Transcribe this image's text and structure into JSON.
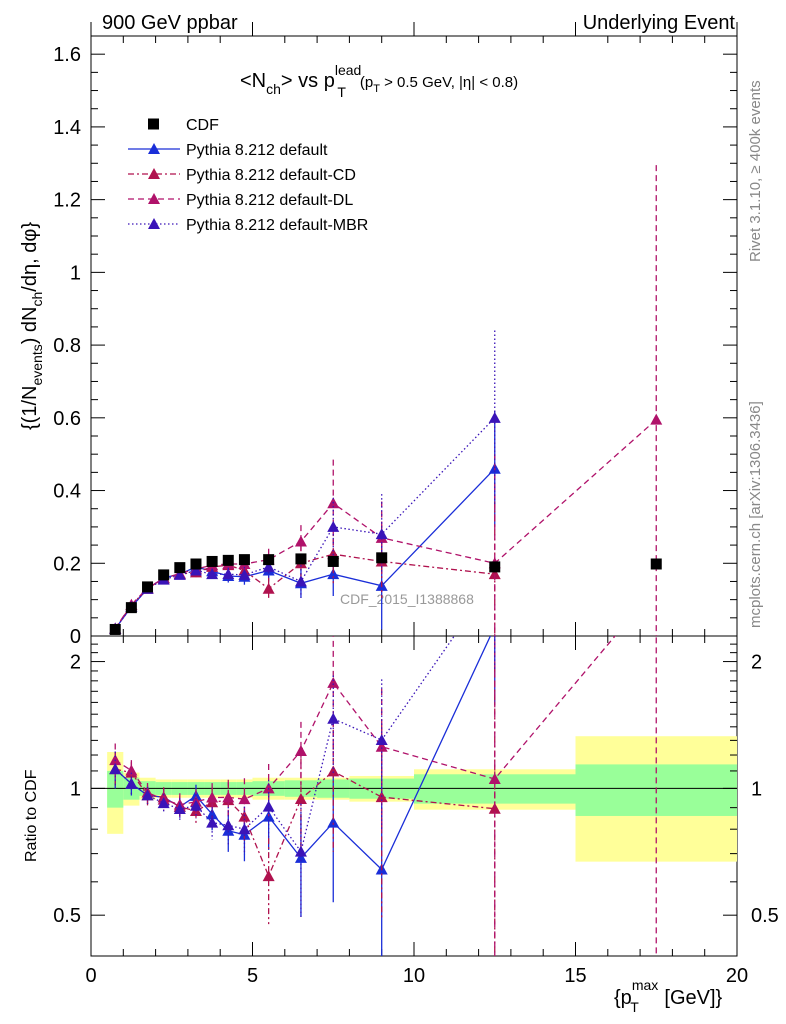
{
  "header": {
    "left": "900 GeV ppbar",
    "right": "Underlying Event"
  },
  "side_labels": {
    "rivet": "Rivet 3.1.10, ≥ 400k events",
    "mcplots": "mcplots.cern.ch [arXiv:1306.3436]"
  },
  "watermark": "CDF_2015_I1388868",
  "chart_data": {
    "type": "scatter",
    "title": "<N_ch> vs p_T^lead (p_T > 0.5 GeV, |η| < 0.8)",
    "title_parts": {
      "main": "<N",
      "sub": "ch",
      "vs": "> vs p",
      "sup": "lead",
      "sub2": "T",
      "cut": "(p",
      "cut_sub": "T",
      "cut_rest": " > 0.5 GeV, |η| < 0.8)"
    },
    "xlabel": "{p_T^max [GeV]}",
    "xlabel_parts": {
      "a": "{p",
      "sub": "T",
      "sup": "max",
      "b": " [GeV]}"
    },
    "ylabel": "{(1/N_events) dN_ch/dη, dφ}",
    "ylabel_parts": {
      "a": "{(1/N",
      "sub1": "events",
      "b": ") dN",
      "sub2": "ch",
      "c": "/dη, dφ}"
    },
    "ratio_ylabel": "Ratio to CDF",
    "xlim": [
      0,
      20
    ],
    "ylim": [
      0,
      1.65
    ],
    "ratio_ylim": [
      0.4,
      2.3
    ],
    "ratio_scale": "log",
    "x_ticks": [
      "0",
      "5",
      "10",
      "15",
      "20"
    ],
    "y_ticks": [
      "0",
      "0.2",
      "0.4",
      "0.6",
      "0.8",
      "1",
      "1.2",
      "1.4",
      "1.6"
    ],
    "ratio_ticks": [
      "0.5",
      "1",
      "2"
    ],
    "legend_position": "top-left",
    "series": [
      {
        "name": "CDF",
        "color": "#000000",
        "marker": "square",
        "line": "none",
        "x": [
          0.75,
          1.25,
          1.75,
          2.25,
          2.75,
          3.25,
          3.75,
          4.25,
          4.75,
          5.5,
          6.5,
          7.5,
          9.0,
          12.5,
          17.5
        ],
        "y": [
          0.018,
          0.078,
          0.135,
          0.168,
          0.188,
          0.198,
          0.205,
          0.208,
          0.21,
          0.21,
          0.212,
          0.205,
          0.215,
          0.19,
          0.198
        ]
      },
      {
        "name": "Pythia 8.212 default",
        "color": "#1a2ed8",
        "marker": "triangle",
        "line": "solid",
        "x": [
          0.75,
          1.25,
          1.75,
          2.25,
          2.75,
          3.25,
          3.75,
          4.25,
          4.75,
          5.5,
          6.5,
          7.5,
          9.0,
          12.5
        ],
        "y": [
          0.02,
          0.08,
          0.13,
          0.16,
          0.17,
          0.19,
          0.178,
          0.165,
          0.163,
          0.18,
          0.145,
          0.17,
          0.138,
          0.46
        ],
        "err": [
          0.002,
          0.005,
          0.006,
          0.008,
          0.01,
          0.012,
          0.015,
          0.018,
          0.022,
          0.03,
          0.04,
          0.06,
          0.12,
          0.16
        ]
      },
      {
        "name": "Pythia 8.212 default-CD",
        "color": "#b0124e",
        "marker": "triangle",
        "line": "dashdot",
        "x": [
          0.75,
          1.25,
          1.75,
          2.25,
          2.75,
          3.25,
          3.75,
          4.25,
          4.75,
          5.5,
          6.5,
          7.5,
          9.0,
          12.5
        ],
        "y": [
          0.02,
          0.085,
          0.13,
          0.16,
          0.17,
          0.175,
          0.19,
          0.195,
          0.18,
          0.13,
          0.2,
          0.225,
          0.205,
          0.17
        ],
        "err": [
          0.002,
          0.005,
          0.007,
          0.009,
          0.01,
          0.013,
          0.016,
          0.02,
          0.025,
          0.03,
          0.05,
          0.08,
          0.1,
          0.2
        ]
      },
      {
        "name": "Pythia 8.212 default-DL",
        "color": "#b0126a",
        "marker": "triangle",
        "line": "dashed",
        "x": [
          0.75,
          1.25,
          1.75,
          2.25,
          2.75,
          3.25,
          3.75,
          4.25,
          4.75,
          5.5,
          6.5,
          7.5,
          9.0,
          12.5,
          17.5
        ],
        "y": [
          0.021,
          0.086,
          0.132,
          0.158,
          0.172,
          0.184,
          0.195,
          0.198,
          0.198,
          0.21,
          0.26,
          0.365,
          0.27,
          0.2,
          0.595
        ],
        "err": [
          0.002,
          0.005,
          0.007,
          0.009,
          0.011,
          0.013,
          0.016,
          0.02,
          0.024,
          0.03,
          0.045,
          0.12,
          0.1,
          0.3,
          0.7
        ]
      },
      {
        "name": "Pythia 8.212 default-MBR",
        "color": "#3a14b8",
        "marker": "triangle",
        "line": "dotted",
        "x": [
          0.75,
          1.25,
          1.75,
          2.25,
          2.75,
          3.25,
          3.75,
          4.25,
          4.75,
          5.5,
          6.5,
          7.5,
          9.0,
          12.5
        ],
        "y": [
          0.02,
          0.08,
          0.13,
          0.155,
          0.168,
          0.18,
          0.17,
          0.17,
          0.168,
          0.19,
          0.15,
          0.3,
          0.28,
          0.6
        ],
        "err": [
          0.002,
          0.005,
          0.006,
          0.008,
          0.01,
          0.012,
          0.015,
          0.018,
          0.022,
          0.03,
          0.045,
          0.08,
          0.11,
          0.24
        ]
      }
    ],
    "ratio_band": {
      "edges": [
        0.5,
        1.0,
        1.5,
        2.0,
        2.5,
        3.0,
        3.5,
        4.0,
        4.5,
        5.0,
        6.0,
        7.0,
        8.0,
        10.0,
        15.0,
        20.0
      ],
      "stat_sys": [
        0.22,
        0.09,
        0.06,
        0.05,
        0.05,
        0.05,
        0.05,
        0.05,
        0.05,
        0.06,
        0.06,
        0.06,
        0.07,
        0.11,
        0.33
      ],
      "stat": [
        0.1,
        0.06,
        0.04,
        0.035,
        0.035,
        0.035,
        0.035,
        0.035,
        0.035,
        0.04,
        0.045,
        0.05,
        0.055,
        0.08,
        0.14
      ]
    }
  }
}
